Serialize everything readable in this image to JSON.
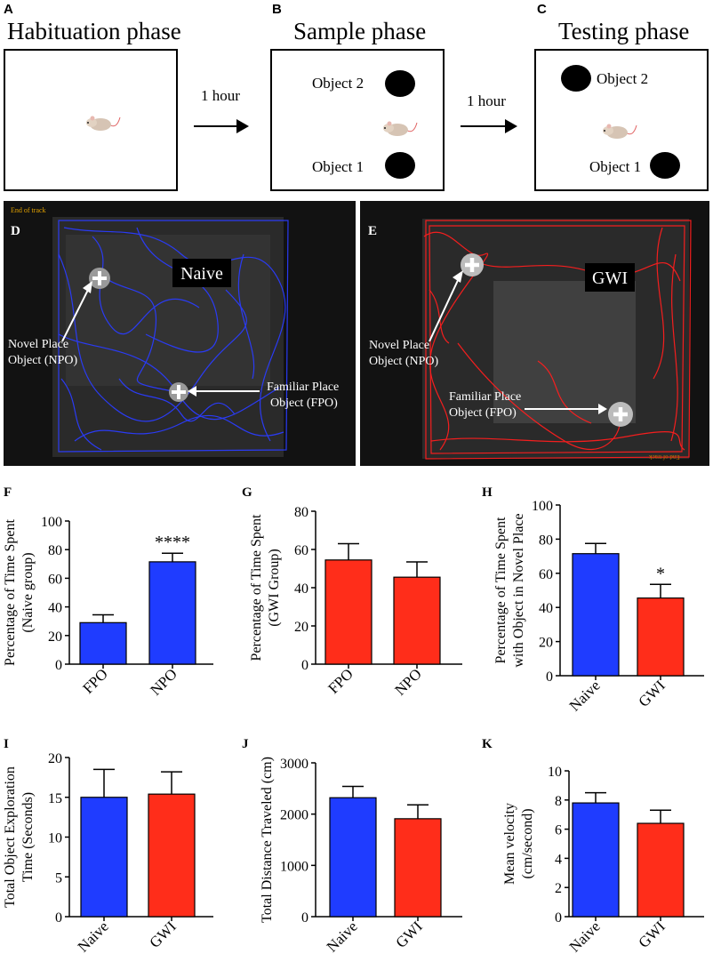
{
  "panels": {
    "A": {
      "label": "A",
      "title": "Habituation phase"
    },
    "B": {
      "label": "B",
      "title": "Sample phase",
      "object2": "Object 2",
      "object1": "Object 1"
    },
    "C": {
      "label": "C",
      "title": "Testing phase",
      "object2": "Object 2",
      "object1": "Object 1"
    },
    "arrow_label_1": "1 hour",
    "arrow_label_2": "1 hour",
    "D": {
      "label": "D",
      "corner_text": "End of track",
      "group": "Naive",
      "npo_line1": "Novel Place",
      "npo_line2": "Object (NPO)",
      "fpo_line1": "Familiar Place",
      "fpo_line2": "Object (FPO)"
    },
    "E": {
      "label": "E",
      "corner_text": "End of track",
      "group": "GWI",
      "npo_line1": "Novel Place",
      "npo_line2": "Object (NPO)",
      "fpo_line1": "Familiar Place",
      "fpo_line2": "Object (FPO)"
    }
  },
  "colors": {
    "naive": "#1f3cff",
    "gwi": "#ff2d1a",
    "track_bg": "#151515",
    "naive_track": "#2a3cff",
    "gwi_track": "#ff1e1e"
  },
  "chart_data": [
    {
      "id": "F",
      "type": "bar",
      "label": "F",
      "categories": [
        "FPO",
        "NPO"
      ],
      "values": [
        29,
        71.5
      ],
      "errors": [
        5.5,
        6
      ],
      "colors": [
        "#1f3cff",
        "#1f3cff"
      ],
      "ylabel_line1": "Percentage of Time Spent",
      "ylabel_line2": "(Naive group)",
      "ylim": [
        0,
        100
      ],
      "ticks": [
        0,
        20,
        40,
        60,
        80,
        100
      ],
      "annotations": [
        "",
        "****"
      ]
    },
    {
      "id": "G",
      "type": "bar",
      "label": "G",
      "categories": [
        "FPO",
        "NPO"
      ],
      "values": [
        54.5,
        45.5
      ],
      "errors": [
        8.5,
        8
      ],
      "colors": [
        "#ff2d1a",
        "#ff2d1a"
      ],
      "ylabel_line1": "Percentage of Time Spent",
      "ylabel_line2": "(GWI Group)",
      "ylim": [
        0,
        80
      ],
      "ticks": [
        0,
        20,
        40,
        60,
        80
      ],
      "annotations": [
        "",
        ""
      ]
    },
    {
      "id": "H",
      "type": "bar",
      "label": "H",
      "categories": [
        "Naive",
        "GWI"
      ],
      "values": [
        71.5,
        45.5
      ],
      "errors": [
        6,
        8
      ],
      "colors": [
        "#1f3cff",
        "#ff2d1a"
      ],
      "ylabel_line1": "Percentage of Time Spent",
      "ylabel_line2": "with Object in Novel Place",
      "ylim": [
        0,
        100
      ],
      "ticks": [
        0,
        20,
        40,
        60,
        80,
        100
      ],
      "annotations": [
        "",
        "*"
      ]
    },
    {
      "id": "I",
      "type": "bar",
      "label": "I",
      "categories": [
        "Naive",
        "GWI"
      ],
      "values": [
        15,
        15.4
      ],
      "errors": [
        3.5,
        2.8
      ],
      "colors": [
        "#1f3cff",
        "#ff2d1a"
      ],
      "ylabel_line1": "Total Object Exploration",
      "ylabel_line2": "Time (Seconds)",
      "ylim": [
        0,
        20
      ],
      "ticks": [
        0,
        5,
        10,
        15,
        20
      ],
      "annotations": [
        "",
        ""
      ]
    },
    {
      "id": "J",
      "type": "bar",
      "label": "J",
      "categories": [
        "Naive",
        "GWI"
      ],
      "values": [
        2320,
        1910
      ],
      "errors": [
        220,
        270
      ],
      "colors": [
        "#1f3cff",
        "#ff2d1a"
      ],
      "ylabel_line1": "Total Distance Traveled (cm)",
      "ylabel_line2": "",
      "ylim": [
        0,
        3000
      ],
      "ticks": [
        0,
        1000,
        2000,
        3000
      ],
      "annotations": [
        "",
        ""
      ]
    },
    {
      "id": "K",
      "type": "bar",
      "label": "K",
      "categories": [
        "Naive",
        "GWI"
      ],
      "values": [
        7.8,
        6.4
      ],
      "errors": [
        0.7,
        0.9
      ],
      "colors": [
        "#1f3cff",
        "#ff2d1a"
      ],
      "ylabel_line1": "Mean velocity",
      "ylabel_line2": "(cm/second)",
      "ylim": [
        0,
        10
      ],
      "ticks": [
        0,
        2,
        4,
        6,
        8,
        10
      ],
      "annotations": [
        "",
        ""
      ]
    }
  ]
}
